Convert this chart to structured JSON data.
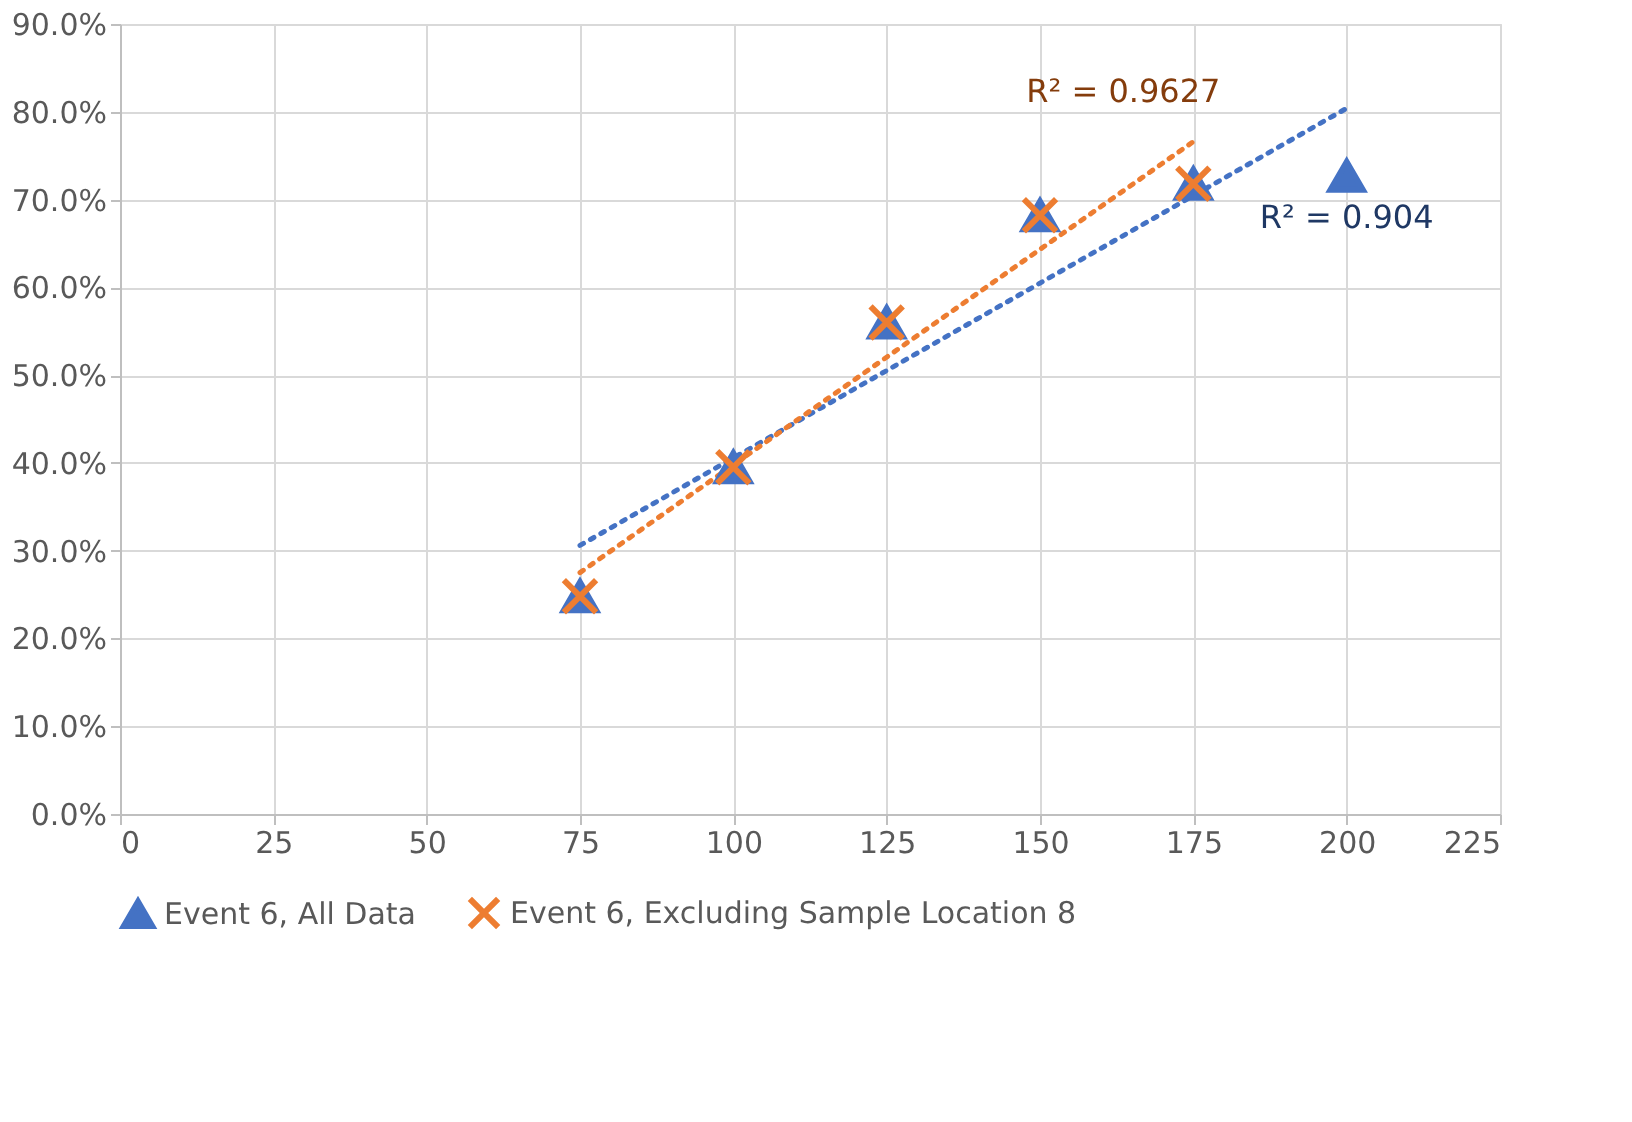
{
  "chart_data": {
    "type": "scatter",
    "x": [
      75,
      100,
      125,
      150,
      175,
      200
    ],
    "series": [
      {
        "name": "Event 6, All Data",
        "color": "#4472c4",
        "marker": "triangle",
        "values": [
          24.8,
          39.5,
          56.0,
          68.2,
          71.8,
          72.7
        ]
      },
      {
        "name": "Event 6, Excluding Sample Location 8",
        "color": "#ed7d31",
        "marker": "cross",
        "x": [
          75,
          100,
          125,
          150,
          175
        ],
        "values": [
          24.8,
          39.5,
          56.0,
          68.2,
          71.8
        ]
      },
      {
        "type": "line",
        "color": "#4472c4",
        "line_style": "dotted",
        "marker": "none",
        "x": [
          75,
          200
        ],
        "values": [
          30.6,
          80.4
        ]
      },
      {
        "type": "line",
        "color": "#ed7d31",
        "line_style": "dotted",
        "marker": "none",
        "x": [
          75,
          175
        ],
        "values": [
          27.5,
          76.6
        ]
      }
    ],
    "annotations": [
      "R² = 0.9627",
      "R² = 0.904"
    ],
    "xlim": [
      0,
      225
    ],
    "xticks": [
      0,
      25,
      50,
      75,
      100,
      125,
      150,
      175,
      200,
      225
    ],
    "ylim": [
      0,
      90
    ],
    "yticks": [
      {
        "value": 0,
        "label": "0.0%"
      },
      {
        "value": 10,
        "label": "10.0%"
      },
      {
        "value": 20,
        "label": "20.0%"
      },
      {
        "value": 30,
        "label": "30.0%"
      },
      {
        "value": 40,
        "label": "40.0%"
      },
      {
        "value": 50,
        "label": "50.0%"
      },
      {
        "value": 60,
        "label": "60.0%"
      },
      {
        "value": 70,
        "label": "70.0%"
      },
      {
        "value": 80,
        "label": "80.0%"
      },
      {
        "value": 90,
        "label": "90.0%"
      }
    ],
    "grid": true,
    "legend": "bottom"
  }
}
